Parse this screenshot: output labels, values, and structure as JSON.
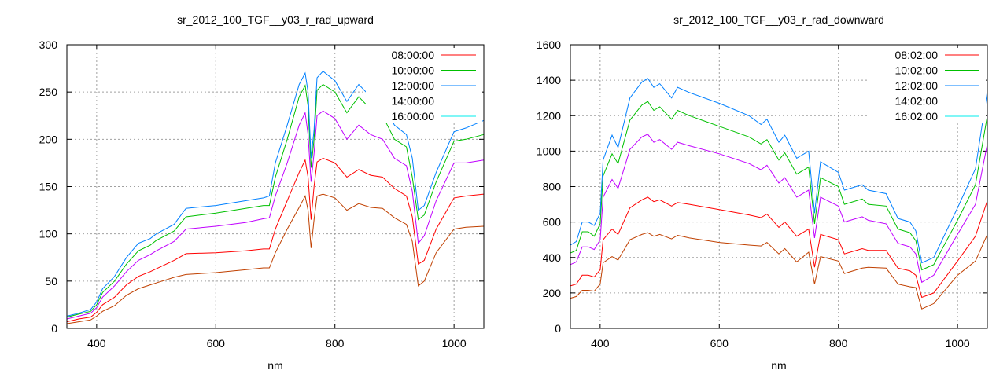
{
  "chart_data": [
    {
      "type": "line",
      "title": "sr_2012_100_TGF__y03_r_rad_upward",
      "xlabel": "nm",
      "ylabel": "",
      "xlim": [
        350,
        1050
      ],
      "ylim": [
        0,
        300
      ],
      "xticks": [
        400,
        600,
        800,
        1000
      ],
      "yticks": [
        0,
        50,
        100,
        150,
        200,
        250,
        300
      ],
      "grid": true,
      "legend_position": "top-right",
      "x": [
        350,
        370,
        390,
        400,
        410,
        430,
        450,
        470,
        490,
        500,
        530,
        550,
        600,
        650,
        680,
        690,
        700,
        720,
        740,
        750,
        755,
        760,
        765,
        770,
        780,
        800,
        820,
        840,
        860,
        880,
        900,
        920,
        930,
        940,
        950,
        970,
        1000,
        1020,
        1050
      ],
      "series": [
        {
          "name": "08:00:00",
          "color": "#ff0000",
          "line_color": "#ff0000",
          "values": [
            7,
            10,
            12,
            17,
            25,
            33,
            46,
            55,
            60,
            63,
            72,
            79,
            80,
            82,
            84,
            84,
            105,
            135,
            165,
            178,
            160,
            115,
            150,
            176,
            180,
            175,
            160,
            168,
            162,
            160,
            148,
            140,
            118,
            68,
            72,
            105,
            138,
            140,
            142
          ]
        },
        {
          "name": "10:00:00",
          "color": "#00c000",
          "line_color": "#00c000",
          "values": [
            12,
            15,
            18,
            25,
            38,
            50,
            68,
            82,
            88,
            93,
            103,
            118,
            122,
            127,
            130,
            130,
            160,
            200,
            245,
            257,
            235,
            170,
            200,
            252,
            258,
            250,
            228,
            245,
            232,
            225,
            200,
            192,
            160,
            115,
            120,
            155,
            198,
            200,
            205
          ]
        },
        {
          "name": "12:00:00",
          "color": "#0080ff",
          "line_color": "#0080ff",
          "values": [
            13,
            16,
            20,
            28,
            42,
            55,
            75,
            90,
            95,
            100,
            110,
            127,
            130,
            135,
            138,
            140,
            175,
            215,
            258,
            270,
            250,
            180,
            210,
            265,
            272,
            262,
            240,
            258,
            245,
            238,
            215,
            205,
            180,
            125,
            130,
            165,
            208,
            212,
            220
          ]
        },
        {
          "name": "14:00:00",
          "color": "#c000ff",
          "line_color": "#c000ff",
          "values": [
            10,
            13,
            16,
            22,
            33,
            45,
            60,
            72,
            78,
            82,
            92,
            105,
            108,
            112,
            116,
            117,
            140,
            175,
            215,
            228,
            205,
            155,
            185,
            225,
            230,
            222,
            200,
            215,
            205,
            200,
            180,
            172,
            145,
            90,
            98,
            135,
            175,
            175,
            178
          ]
        },
        {
          "name": "16:00:00",
          "color": "#00eeee",
          "line_color": "#c04000",
          "values": [
            5,
            7,
            9,
            13,
            18,
            24,
            35,
            42,
            46,
            48,
            54,
            57,
            59,
            62,
            64,
            64,
            80,
            105,
            128,
            140,
            125,
            85,
            115,
            140,
            142,
            138,
            125,
            132,
            128,
            127,
            117,
            110,
            92,
            45,
            50,
            80,
            105,
            107,
            108
          ]
        }
      ]
    },
    {
      "type": "line",
      "title": "sr_2012_100_TGF__y03_r_rad_downward",
      "xlabel": "nm",
      "ylabel": "",
      "xlim": [
        350,
        1050
      ],
      "ylim": [
        0,
        1600
      ],
      "xticks": [
        400,
        600,
        800,
        1000
      ],
      "yticks": [
        0,
        200,
        400,
        600,
        800,
        1000,
        1200,
        1400,
        1600
      ],
      "grid": true,
      "legend_position": "top-right",
      "x": [
        350,
        360,
        370,
        380,
        390,
        400,
        405,
        420,
        430,
        450,
        470,
        480,
        490,
        500,
        520,
        530,
        550,
        600,
        650,
        670,
        680,
        700,
        710,
        730,
        750,
        760,
        770,
        800,
        810,
        840,
        850,
        880,
        900,
        920,
        930,
        940,
        960,
        1000,
        1030,
        1050
      ],
      "series": [
        {
          "name": "08:02:00",
          "color": "#ff0000",
          "line_color": "#ff0000",
          "values": [
            240,
            250,
            300,
            300,
            290,
            330,
            500,
            560,
            530,
            680,
            725,
            740,
            715,
            725,
            690,
            710,
            700,
            670,
            640,
            625,
            645,
            570,
            600,
            520,
            560,
            345,
            530,
            500,
            420,
            450,
            440,
            440,
            340,
            325,
            300,
            175,
            200,
            380,
            520,
            720
          ]
        },
        {
          "name": "10:02:00",
          "color": "#00c000",
          "line_color": "#00c000",
          "values": [
            425,
            440,
            545,
            545,
            520,
            590,
            860,
            985,
            930,
            1175,
            1260,
            1280,
            1230,
            1250,
            1180,
            1230,
            1200,
            1140,
            1080,
            1040,
            1065,
            950,
            990,
            870,
            910,
            590,
            850,
            800,
            700,
            730,
            700,
            690,
            560,
            540,
            495,
            330,
            360,
            610,
            810,
            1200
          ]
        },
        {
          "name": "12:02:00",
          "color": "#0080ff",
          "line_color": "#0080ff",
          "values": [
            470,
            490,
            600,
            600,
            580,
            650,
            950,
            1090,
            1020,
            1300,
            1390,
            1410,
            1360,
            1380,
            1300,
            1360,
            1330,
            1270,
            1200,
            1150,
            1180,
            1050,
            1090,
            960,
            1000,
            650,
            940,
            880,
            780,
            810,
            780,
            760,
            620,
            600,
            550,
            370,
            400,
            680,
            900,
            1340
          ]
        },
        {
          "name": "14:02:00",
          "color": "#c000ff",
          "line_color": "#c000ff",
          "values": [
            360,
            375,
            460,
            460,
            445,
            500,
            740,
            840,
            790,
            1010,
            1080,
            1095,
            1050,
            1065,
            1010,
            1050,
            1030,
            985,
            930,
            895,
            920,
            820,
            850,
            740,
            780,
            510,
            740,
            690,
            600,
            630,
            610,
            590,
            480,
            460,
            420,
            260,
            300,
            530,
            700,
            1040
          ]
        },
        {
          "name": "16:02:00",
          "color": "#00eeee",
          "line_color": "#c04000",
          "values": [
            170,
            180,
            215,
            215,
            210,
            250,
            370,
            405,
            385,
            500,
            530,
            540,
            520,
            530,
            505,
            525,
            510,
            485,
            470,
            465,
            485,
            420,
            450,
            375,
            430,
            250,
            405,
            380,
            310,
            340,
            345,
            340,
            250,
            235,
            230,
            110,
            140,
            300,
            380,
            530
          ]
        }
      ]
    }
  ]
}
